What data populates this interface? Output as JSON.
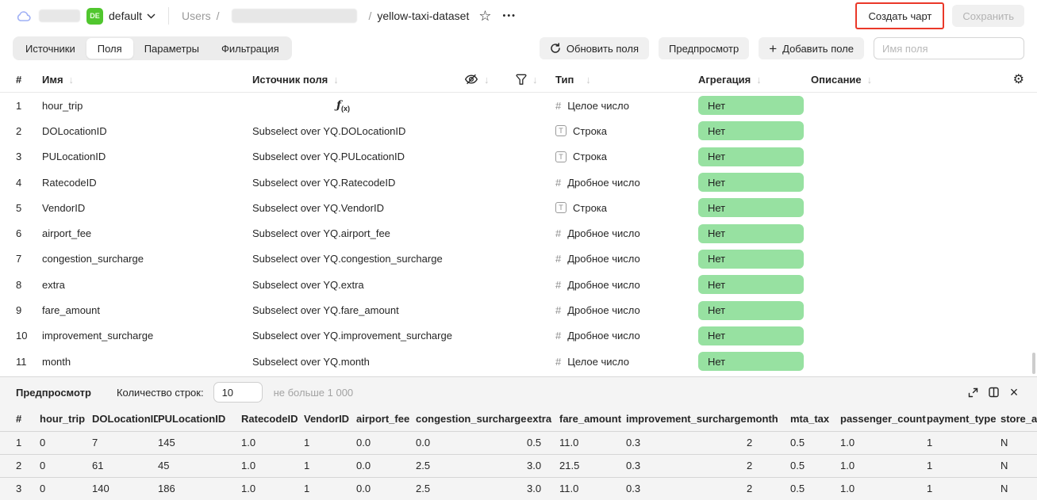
{
  "header": {
    "workspace_badge": "DE",
    "workspace_name": "default",
    "breadcrumb": {
      "root": "Users",
      "separator": "/",
      "current": "yellow-taxi-dataset"
    },
    "actions": {
      "create_chart": "Создать чарт",
      "save": "Сохранить"
    }
  },
  "toolbar": {
    "tabs": [
      {
        "id": "sources",
        "label": "Источники",
        "active": false
      },
      {
        "id": "fields",
        "label": "Поля",
        "active": true
      },
      {
        "id": "parameters",
        "label": "Параметры",
        "active": false
      },
      {
        "id": "filtering",
        "label": "Фильтрация",
        "active": false
      }
    ],
    "refresh_fields": "Обновить поля",
    "preview": "Предпросмотр",
    "add_field": "Добавить поле",
    "field_name_placeholder": "Имя поля"
  },
  "fields_table": {
    "columns": {
      "index": "#",
      "name": "Имя",
      "source": "Источник поля",
      "type": "Тип",
      "aggregation": "Агрегация",
      "description": "Описание"
    },
    "rows": [
      {
        "index": "1",
        "name": "hour_trip",
        "source": "",
        "formula": true,
        "type_kind": "integer",
        "type_label": "Целое число",
        "aggregation": "Нет",
        "description": ""
      },
      {
        "index": "2",
        "name": "DOLocationID",
        "source": "Subselect over YQ.DOLocationID",
        "formula": false,
        "type_kind": "string",
        "type_label": "Строка",
        "aggregation": "Нет",
        "description": ""
      },
      {
        "index": "3",
        "name": "PULocationID",
        "source": "Subselect over YQ.PULocationID",
        "formula": false,
        "type_kind": "string",
        "type_label": "Строка",
        "aggregation": "Нет",
        "description": ""
      },
      {
        "index": "4",
        "name": "RatecodeID",
        "source": "Subselect over YQ.RatecodeID",
        "formula": false,
        "type_kind": "float",
        "type_label": "Дробное число",
        "aggregation": "Нет",
        "description": ""
      },
      {
        "index": "5",
        "name": "VendorID",
        "source": "Subselect over YQ.VendorID",
        "formula": false,
        "type_kind": "string",
        "type_label": "Строка",
        "aggregation": "Нет",
        "description": ""
      },
      {
        "index": "6",
        "name": "airport_fee",
        "source": "Subselect over YQ.airport_fee",
        "formula": false,
        "type_kind": "float",
        "type_label": "Дробное число",
        "aggregation": "Нет",
        "description": ""
      },
      {
        "index": "7",
        "name": "congestion_surcharge",
        "source": "Subselect over YQ.congestion_surcharge",
        "formula": false,
        "type_kind": "float",
        "type_label": "Дробное число",
        "aggregation": "Нет",
        "description": ""
      },
      {
        "index": "8",
        "name": "extra",
        "source": "Subselect over YQ.extra",
        "formula": false,
        "type_kind": "float",
        "type_label": "Дробное число",
        "aggregation": "Нет",
        "description": ""
      },
      {
        "index": "9",
        "name": "fare_amount",
        "source": "Subselect over YQ.fare_amount",
        "formula": false,
        "type_kind": "float",
        "type_label": "Дробное число",
        "aggregation": "Нет",
        "description": ""
      },
      {
        "index": "10",
        "name": "improvement_surcharge",
        "source": "Subselect over YQ.improvement_surcharge",
        "formula": false,
        "type_kind": "float",
        "type_label": "Дробное число",
        "aggregation": "Нет",
        "description": ""
      },
      {
        "index": "11",
        "name": "month",
        "source": "Subselect over YQ.month",
        "formula": false,
        "type_kind": "integer",
        "type_label": "Целое число",
        "aggregation": "Нет",
        "description": ""
      }
    ]
  },
  "preview": {
    "title": "Предпросмотр",
    "row_count_label": "Количество строк:",
    "row_count_value": "10",
    "row_count_hint": "не больше 1 000",
    "table": {
      "columns": [
        "#",
        "hour_trip",
        "DOLocationID",
        "PULocationID",
        "RatecodeID",
        "VendorID",
        "airport_fee",
        "congestion_surcharge",
        "extra",
        "fare_amount",
        "improvement_surcharge",
        "month",
        "mta_tax",
        "passenger_count",
        "payment_type",
        "store_an"
      ],
      "rows": [
        [
          "1",
          "0",
          "7",
          "145",
          "1.0",
          "1",
          "0.0",
          "0.0",
          "0.5",
          "11.0",
          "0.3",
          "2",
          "0.5",
          "1.0",
          "1",
          "N"
        ],
        [
          "2",
          "0",
          "61",
          "45",
          "1.0",
          "1",
          "0.0",
          "2.5",
          "3.0",
          "21.5",
          "0.3",
          "2",
          "0.5",
          "1.0",
          "1",
          "N"
        ],
        [
          "3",
          "0",
          "140",
          "186",
          "1.0",
          "1",
          "0.0",
          "2.5",
          "3.0",
          "11.0",
          "0.3",
          "2",
          "0.5",
          "1.0",
          "1",
          "N"
        ]
      ]
    }
  },
  "icons": {
    "sort_arrow": "↓",
    "add": "+",
    "more": "•••",
    "star": "☆",
    "gear": "⚙",
    "close": "×",
    "formula_f": "ƒ",
    "formula_args": "(x)"
  },
  "colors": {
    "aggregation_pill_green": "#97e1a1",
    "env_badge_green": "#50c62e",
    "annotation_red": "#ea3829",
    "disabled_text": "#b3b3b3"
  }
}
